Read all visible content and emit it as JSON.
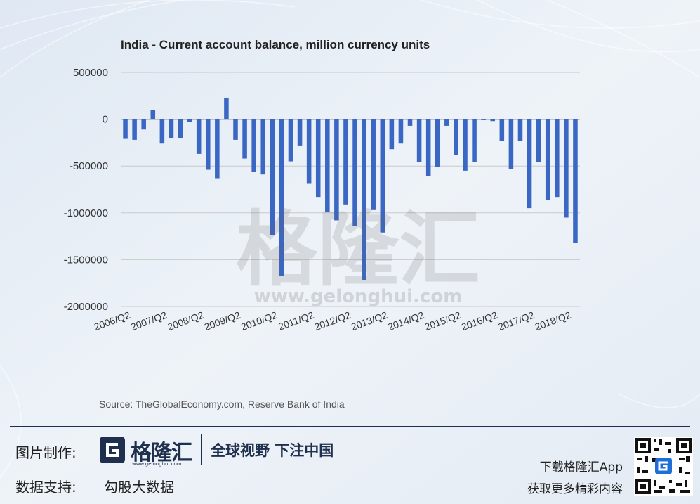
{
  "chart_data": {
    "type": "bar",
    "title": "India - Current account balance, million currency units",
    "xlabel": "",
    "ylabel": "",
    "ylim": [
      -2000000,
      500000
    ],
    "yticks": [
      500000,
      0,
      -500000,
      -1000000,
      -1500000,
      -2000000
    ],
    "ytick_labels": [
      "500000",
      "0",
      "-500000",
      "-1000000",
      "-1500000",
      "-2000000"
    ],
    "xtick_labels": [
      "2006/Q2",
      "2007/Q2",
      "2008/Q2",
      "2009/Q2",
      "2010/Q2",
      "2011/Q2",
      "2012/Q2",
      "2013/Q2",
      "2014/Q2",
      "2015/Q2",
      "2016/Q2",
      "2017/Q2",
      "2018/Q2"
    ],
    "grid": true,
    "bar_color": "#3a66c4",
    "categories": [
      "2006/Q2",
      "2006/Q3",
      "2006/Q4",
      "2007/Q1",
      "2007/Q2",
      "2007/Q3",
      "2007/Q4",
      "2008/Q1",
      "2008/Q2",
      "2008/Q3",
      "2008/Q4",
      "2009/Q1",
      "2009/Q2",
      "2009/Q3",
      "2009/Q4",
      "2010/Q1",
      "2010/Q2",
      "2010/Q3",
      "2010/Q4",
      "2011/Q1",
      "2011/Q2",
      "2011/Q3",
      "2011/Q4",
      "2012/Q1",
      "2012/Q2",
      "2012/Q3",
      "2012/Q4",
      "2013/Q1",
      "2013/Q2",
      "2013/Q3",
      "2013/Q4",
      "2014/Q1",
      "2014/Q2",
      "2014/Q3",
      "2014/Q4",
      "2015/Q1",
      "2015/Q2",
      "2015/Q3",
      "2015/Q4",
      "2016/Q1",
      "2016/Q2",
      "2016/Q3",
      "2016/Q4",
      "2017/Q1",
      "2017/Q2",
      "2017/Q3",
      "2017/Q4",
      "2018/Q1",
      "2018/Q2",
      "2018/Q3"
    ],
    "values": [
      -210000,
      -220000,
      -110000,
      100000,
      -260000,
      -200000,
      -200000,
      -30000,
      -370000,
      -540000,
      -630000,
      230000,
      -220000,
      -420000,
      -560000,
      -590000,
      -1240000,
      -1670000,
      -450000,
      -280000,
      -690000,
      -830000,
      -990000,
      -1080000,
      -910000,
      -1140000,
      -1720000,
      -970000,
      -1210000,
      -320000,
      -260000,
      -70000,
      -460000,
      -610000,
      -510000,
      -70000,
      -380000,
      -550000,
      -460000,
      -10000,
      -20000,
      -230000,
      -530000,
      -230000,
      -950000,
      -460000,
      -860000,
      -830000,
      -1050000,
      -1320000
    ]
  },
  "source": "Source: TheGlobalEconomy.com, Reserve Bank of India",
  "watermark": {
    "brand": "格隆汇",
    "url": "www.gelonghui.com"
  },
  "footer": {
    "image_credit_label": "图片制作:",
    "logo_text": "格隆汇",
    "logo_url": "www.gelonghui.com",
    "slogan": "全球视野 下注中国",
    "data_support_label": "数据支持:",
    "data_support_value": "勾股大数据",
    "download_text": "下载格隆汇App",
    "more_text": "获取更多精彩内容"
  }
}
